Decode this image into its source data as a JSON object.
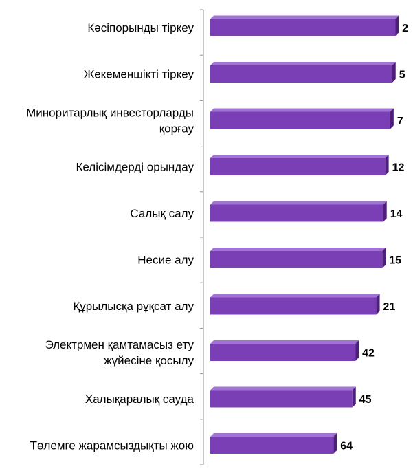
{
  "chart_data": {
    "type": "bar",
    "orientation": "horizontal",
    "categories": [
      [
        "Кәсіпорынды тіркеу"
      ],
      [
        "Жекеменшікті тіркеу"
      ],
      [
        "Миноритарлық инвесторларды",
        "қорғау"
      ],
      [
        "Келісімдерді орындау"
      ],
      [
        "Салық салу"
      ],
      [
        "Несие алу"
      ],
      [
        "Құрылысқа рұқсат алу"
      ],
      [
        "Электрмен қамтамасыз ету",
        "жүйесіне қосылу"
      ],
      [
        "Халықаралық сауда"
      ],
      [
        "Төлемге жарамсыздықты жою"
      ]
    ],
    "values": [
      2,
      5,
      7,
      12,
      14,
      15,
      21,
      42,
      45,
      64
    ],
    "value_labels": [
      "2",
      "5",
      "7",
      "12",
      "14",
      "15",
      "21",
      "42",
      "45",
      "64"
    ],
    "bar_color": "#7b3fb5",
    "bar_side_color": "#4d1f7a",
    "bar_top_color": "#a173d4",
    "axis_color": "#8c8c8c",
    "reversed_scale": true,
    "grid": false,
    "title": "",
    "xlabel": "",
    "ylabel": ""
  }
}
